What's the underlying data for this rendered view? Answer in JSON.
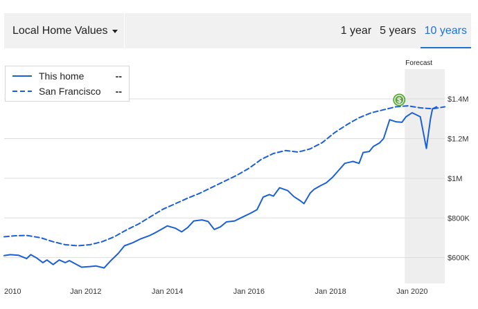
{
  "header": {
    "dropdown_label": "Local Home Values",
    "tabs": [
      {
        "label": "1 year",
        "active": false
      },
      {
        "label": "5 years",
        "active": false
      },
      {
        "label": "10 years",
        "active": true
      }
    ]
  },
  "legend": {
    "items": [
      {
        "label": "This home",
        "value": "--",
        "style": "solid"
      },
      {
        "label": "San Francisco",
        "value": "--",
        "style": "dashed"
      }
    ]
  },
  "colors": {
    "accent": "#1f6fd6",
    "series": "#1a5fd8",
    "forecast_band": "#eeeeee",
    "marker": "#5cab3a"
  },
  "marker_icon": "dollar-icon",
  "chart_data": {
    "type": "line",
    "forecast_label": "Forecast",
    "forecast_range": [
      2019.82,
      2020.8
    ],
    "xlim": [
      2010,
      2020.8
    ],
    "ylim": [
      470000,
      1550000
    ],
    "x_ticks": [
      {
        "value": 2010,
        "label": "2010"
      },
      {
        "value": 2012,
        "label": "Jan 2012"
      },
      {
        "value": 2014,
        "label": "Jan 2014"
      },
      {
        "value": 2016,
        "label": "Jan 2016"
      },
      {
        "value": 2018,
        "label": "Jan 2018"
      },
      {
        "value": 2020,
        "label": "Jan 2020"
      }
    ],
    "y_ticks": [
      {
        "value": 600000,
        "label": "$600K"
      },
      {
        "value": 800000,
        "label": "$800K"
      },
      {
        "value": 1000000,
        "label": "$1M"
      },
      {
        "value": 1200000,
        "label": "$1.2M"
      },
      {
        "value": 1400000,
        "label": "$1.4M"
      }
    ],
    "grid": true,
    "series": [
      {
        "name": "This home",
        "style": "solid",
        "points": [
          [
            2010.0,
            610000
          ],
          [
            2010.15,
            615000
          ],
          [
            2010.35,
            612000
          ],
          [
            2010.55,
            595000
          ],
          [
            2010.65,
            615000
          ],
          [
            2010.8,
            598000
          ],
          [
            2010.95,
            575000
          ],
          [
            2011.05,
            588000
          ],
          [
            2011.2,
            565000
          ],
          [
            2011.35,
            588000
          ],
          [
            2011.5,
            575000
          ],
          [
            2011.6,
            585000
          ],
          [
            2011.75,
            568000
          ],
          [
            2011.9,
            552000
          ],
          [
            2012.1,
            555000
          ],
          [
            2012.25,
            558000
          ],
          [
            2012.45,
            548000
          ],
          [
            2012.6,
            582000
          ],
          [
            2012.8,
            622000
          ],
          [
            2012.95,
            660000
          ],
          [
            2013.15,
            675000
          ],
          [
            2013.35,
            695000
          ],
          [
            2013.55,
            710000
          ],
          [
            2013.7,
            725000
          ],
          [
            2013.85,
            742000
          ],
          [
            2014.0,
            760000
          ],
          [
            2014.2,
            748000
          ],
          [
            2014.35,
            730000
          ],
          [
            2014.5,
            752000
          ],
          [
            2014.65,
            785000
          ],
          [
            2014.85,
            790000
          ],
          [
            2015.0,
            782000
          ],
          [
            2015.15,
            742000
          ],
          [
            2015.3,
            755000
          ],
          [
            2015.45,
            780000
          ],
          [
            2015.65,
            785000
          ],
          [
            2015.85,
            805000
          ],
          [
            2016.05,
            825000
          ],
          [
            2016.2,
            842000
          ],
          [
            2016.35,
            905000
          ],
          [
            2016.5,
            918000
          ],
          [
            2016.6,
            910000
          ],
          [
            2016.75,
            952000
          ],
          [
            2016.95,
            938000
          ],
          [
            2017.1,
            908000
          ],
          [
            2017.25,
            888000
          ],
          [
            2017.35,
            872000
          ],
          [
            2017.5,
            925000
          ],
          [
            2017.6,
            945000
          ],
          [
            2017.75,
            962000
          ],
          [
            2017.9,
            978000
          ],
          [
            2018.05,
            1005000
          ],
          [
            2018.2,
            1040000
          ],
          [
            2018.35,
            1075000
          ],
          [
            2018.55,
            1085000
          ],
          [
            2018.7,
            1075000
          ],
          [
            2018.8,
            1130000
          ],
          [
            2018.95,
            1135000
          ],
          [
            2019.05,
            1160000
          ],
          [
            2019.2,
            1178000
          ],
          [
            2019.3,
            1200000
          ],
          [
            2019.45,
            1295000
          ],
          [
            2019.6,
            1285000
          ],
          [
            2019.75,
            1282000
          ],
          [
            2019.85,
            1310000
          ],
          [
            2020.0,
            1330000
          ],
          [
            2020.1,
            1320000
          ],
          [
            2020.2,
            1310000
          ],
          [
            2020.35,
            1150000
          ],
          [
            2020.45,
            1300000
          ],
          [
            2020.5,
            1350000
          ],
          [
            2020.6,
            1360000
          ]
        ]
      },
      {
        "name": "San Francisco",
        "style": "dashed",
        "points": [
          [
            2010.0,
            705000
          ],
          [
            2010.25,
            710000
          ],
          [
            2010.55,
            712000
          ],
          [
            2010.9,
            700000
          ],
          [
            2011.2,
            680000
          ],
          [
            2011.5,
            665000
          ],
          [
            2011.8,
            660000
          ],
          [
            2012.1,
            665000
          ],
          [
            2012.4,
            680000
          ],
          [
            2012.7,
            705000
          ],
          [
            2013.0,
            740000
          ],
          [
            2013.3,
            770000
          ],
          [
            2013.6,
            808000
          ],
          [
            2013.9,
            845000
          ],
          [
            2014.2,
            872000
          ],
          [
            2014.5,
            900000
          ],
          [
            2014.8,
            925000
          ],
          [
            2015.1,
            955000
          ],
          [
            2015.4,
            985000
          ],
          [
            2015.7,
            1015000
          ],
          [
            2016.0,
            1050000
          ],
          [
            2016.3,
            1095000
          ],
          [
            2016.6,
            1125000
          ],
          [
            2016.9,
            1140000
          ],
          [
            2017.2,
            1132000
          ],
          [
            2017.5,
            1148000
          ],
          [
            2017.8,
            1180000
          ],
          [
            2018.1,
            1230000
          ],
          [
            2018.4,
            1270000
          ],
          [
            2018.7,
            1305000
          ],
          [
            2019.0,
            1330000
          ],
          [
            2019.3,
            1345000
          ],
          [
            2019.6,
            1360000
          ],
          [
            2019.9,
            1365000
          ],
          [
            2020.2,
            1355000
          ],
          [
            2020.5,
            1350000
          ],
          [
            2020.8,
            1360000
          ]
        ]
      }
    ]
  }
}
